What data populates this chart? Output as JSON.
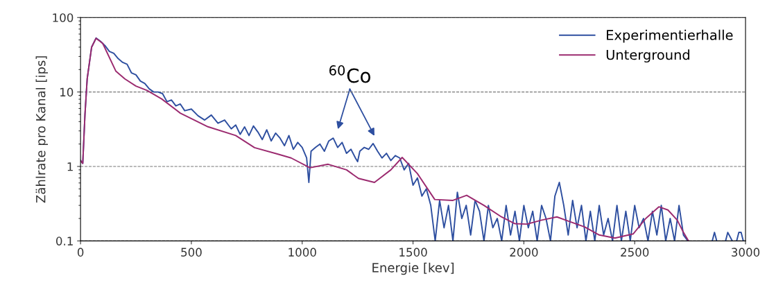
{
  "chart_data": {
    "type": "line",
    "xlabel": "Energie [kev]",
    "ylabel": "Zählrate pro Kanal [ips]",
    "log": "y",
    "xlim": [
      0,
      3000
    ],
    "ylim": [
      0.1,
      100
    ],
    "xticks": [
      0,
      500,
      1000,
      1500,
      2000,
      2500,
      3000
    ],
    "yticks": [
      0.1,
      1,
      10,
      100
    ],
    "grid": "y",
    "legend": "top right",
    "marker": "none",
    "line_style": "solid",
    "annotations": [
      "$^{60}$Co"
    ],
    "series": [
      {
        "name": "Experimentierhalle",
        "color": "#2e4fa0",
        "x": [
          0,
          10,
          20,
          30,
          50,
          70,
          90,
          110,
          130,
          150,
          170,
          190,
          210,
          230,
          250,
          270,
          290,
          310,
          330,
          350,
          370,
          390,
          410,
          430,
          450,
          470,
          500,
          530,
          560,
          590,
          620,
          650,
          680,
          700,
          720,
          740,
          760,
          780,
          800,
          820,
          840,
          860,
          880,
          900,
          920,
          940,
          960,
          980,
          1000,
          1020,
          1030,
          1040,
          1060,
          1080,
          1100,
          1120,
          1140,
          1160,
          1180,
          1200,
          1220,
          1240,
          1250,
          1260,
          1280,
          1300,
          1320,
          1340,
          1360,
          1380,
          1400,
          1420,
          1440,
          1460,
          1480,
          1500,
          1520,
          1540,
          1560,
          1580,
          1600,
          1620,
          1640,
          1660,
          1680,
          1700,
          1720,
          1740,
          1760,
          1780,
          1800,
          1820,
          1840,
          1860,
          1880,
          1900,
          1920,
          1940,
          1960,
          1980,
          2000,
          2020,
          2040,
          2060,
          2080,
          2100,
          2120,
          2140,
          2160,
          2180,
          2200,
          2220,
          2240,
          2260,
          2280,
          2300,
          2320,
          2340,
          2360,
          2380,
          2400,
          2420,
          2440,
          2460,
          2480,
          2500,
          2520,
          2540,
          2560,
          2580,
          2600,
          2620,
          2640,
          2660,
          2680,
          2700,
          2720,
          2740,
          2800,
          2850,
          2860,
          2870,
          2900,
          2910,
          2920,
          2940,
          2950,
          2960,
          2970,
          2980,
          2990
        ],
        "values": [
          1.2,
          1.1,
          5,
          15,
          40,
          53,
          48,
          42,
          35,
          33,
          28,
          25,
          23.6,
          18,
          17,
          14,
          13,
          11,
          10,
          10,
          9.5,
          7.4,
          7.8,
          6.5,
          6.9,
          5.6,
          5.9,
          4.8,
          4.2,
          4.9,
          3.8,
          4.2,
          3.2,
          3.6,
          2.7,
          3.4,
          2.6,
          3.5,
          2.9,
          2.3,
          3.1,
          2.2,
          2.8,
          2.4,
          1.9,
          2.6,
          1.7,
          2.1,
          1.8,
          1.3,
          0.61,
          1.6,
          1.8,
          2.0,
          1.6,
          2.2,
          2.4,
          1.8,
          2.1,
          1.5,
          1.7,
          1.3,
          1.16,
          1.6,
          1.8,
          1.7,
          2.03,
          1.6,
          1.3,
          1.5,
          1.2,
          1.4,
          1.3,
          0.9,
          1.1,
          0.56,
          0.7,
          0.4,
          0.5,
          0.3,
          0.1,
          0.35,
          0.15,
          0.3,
          0.1,
          0.45,
          0.2,
          0.3,
          0.12,
          0.35,
          0.25,
          0.1,
          0.3,
          0.15,
          0.2,
          0.1,
          0.3,
          0.12,
          0.25,
          0.1,
          0.3,
          0.15,
          0.25,
          0.1,
          0.3,
          0.2,
          0.1,
          0.4,
          0.61,
          0.3,
          0.12,
          0.35,
          0.15,
          0.3,
          0.1,
          0.25,
          0.1,
          0.3,
          0.12,
          0.2,
          0.1,
          0.3,
          0.1,
          0.25,
          0.1,
          0.3,
          0.15,
          0.2,
          0.1,
          0.25,
          0.12,
          0.3,
          0.1,
          0.2,
          0.1,
          0.3,
          0.12,
          0.1,
          null,
          0.1,
          0.13,
          0.1,
          null,
          0.1,
          0.13,
          0.1,
          null,
          0.1,
          0.13,
          0.13,
          0.1
        ]
      },
      {
        "name": "Unterground",
        "color": "#9b2a6f",
        "x": [
          0,
          10,
          20,
          30,
          50,
          70,
          100,
          159,
          200,
          250,
          300,
          366,
          450,
          575,
          700,
          785,
          888,
          950,
          1035,
          1117,
          1200,
          1254,
          1326,
          1400,
          1451,
          1520,
          1598,
          1680,
          1742,
          1820,
          1899,
          1960,
          2014,
          2080,
          2149,
          2210,
          2274,
          2340,
          2411,
          2493,
          2550,
          2609,
          2650,
          2692,
          2720,
          2743
        ],
        "values": [
          1.2,
          1.1,
          5,
          15,
          40,
          52.5,
          45,
          19.1,
          15,
          12,
          10.5,
          8.07,
          5.2,
          3.41,
          2.6,
          1.79,
          1.47,
          1.3,
          0.96,
          1.07,
          0.9,
          0.69,
          0.61,
          0.9,
          1.32,
          0.8,
          0.36,
          0.35,
          0.41,
          0.3,
          0.21,
          0.17,
          0.168,
          0.19,
          0.21,
          0.18,
          0.154,
          0.12,
          0.109,
          0.124,
          0.2,
          0.287,
          0.26,
          0.19,
          0.13,
          0.1
        ]
      }
    ]
  }
}
